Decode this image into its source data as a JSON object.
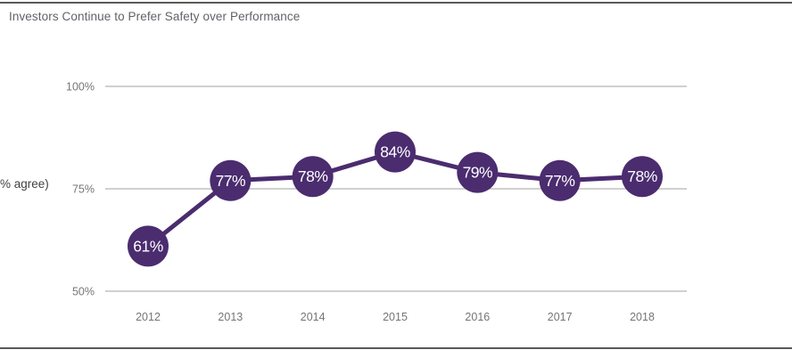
{
  "chart_data": {
    "type": "line",
    "title": "Investors Continue to Prefer Safety over Performance",
    "ylabel": "% agree)",
    "categories": [
      "2012",
      "2013",
      "2014",
      "2015",
      "2016",
      "2017",
      "2018"
    ],
    "values": [
      61,
      77,
      78,
      84,
      79,
      77,
      78
    ],
    "data_labels": [
      "61%",
      "77%",
      "78%",
      "84%",
      "79%",
      "77%",
      "78%"
    ],
    "yticks": [
      100,
      75,
      50
    ],
    "ytick_labels": [
      "100%",
      "75%",
      "50%"
    ],
    "ylim": [
      50,
      100
    ],
    "grid": true,
    "legend": "none",
    "colors": {
      "series": "#4B2C6F",
      "point_fill": "#4B2C6F",
      "point_label_text": "#FFFFFF",
      "gridline": "#C9C9C9",
      "axis_text": "#757575",
      "title_text": "#5F6368",
      "y_axis_title_text": "#424242",
      "divider": "#595959"
    }
  }
}
